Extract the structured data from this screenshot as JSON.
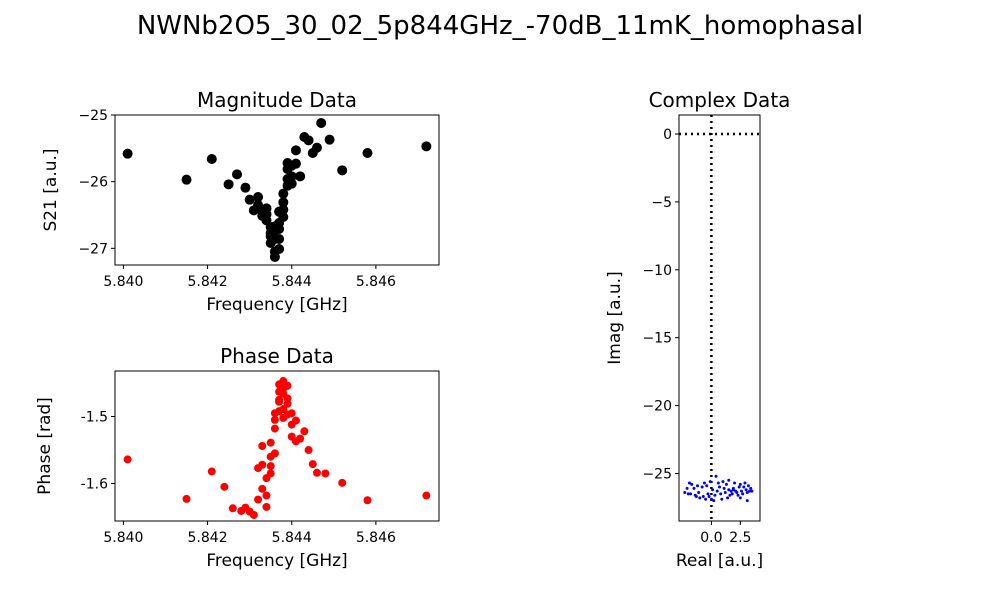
{
  "figure": {
    "title": "NWNb2O5_30_02_5p844GHz_-70dB_11mK_homophasal"
  },
  "chart_data": [
    {
      "id": "magnitude",
      "type": "scatter",
      "title": "Magnitude Data",
      "xlabel": "Frequency [GHz]",
      "ylabel": "S21 [a.u.]",
      "xlim": [
        5.8398,
        5.8475
      ],
      "ylim": [
        -27.25,
        -25.0
      ],
      "xticks": [
        5.84,
        5.842,
        5.844,
        5.846
      ],
      "xticklabels": [
        "5.840",
        "5.842",
        "5.844",
        "5.846"
      ],
      "yticks": [
        -25,
        -26,
        -27
      ],
      "yticklabels": [
        "−25",
        "−26",
        "−27"
      ],
      "color": "#000000",
      "x": [
        5.8401,
        5.8415,
        5.8421,
        5.8425,
        5.8427,
        5.8429,
        5.843,
        5.8431,
        5.8432,
        5.8432,
        5.8433,
        5.8433,
        5.8434,
        5.8434,
        5.8434,
        5.8435,
        5.8435,
        5.8435,
        5.8435,
        5.8436,
        5.8436,
        5.8436,
        5.8436,
        5.8436,
        5.8437,
        5.8437,
        5.8437,
        5.8437,
        5.8437,
        5.8438,
        5.8438,
        5.8438,
        5.8438,
        5.8439,
        5.8439,
        5.8439,
        5.8439,
        5.844,
        5.844,
        5.844,
        5.8441,
        5.8441,
        5.8442,
        5.8443,
        5.8444,
        5.8445,
        5.8446,
        5.8447,
        5.8449,
        5.8452,
        5.8458,
        5.8472
      ],
      "y": [
        -25.58,
        -25.97,
        -25.66,
        -26.04,
        -25.89,
        -26.09,
        -26.27,
        -26.43,
        -26.23,
        -26.35,
        -26.51,
        -26.44,
        -26.4,
        -26.58,
        -26.49,
        -26.68,
        -26.82,
        -26.92,
        -26.77,
        -26.73,
        -27.05,
        -27.13,
        -26.86,
        -26.67,
        -26.45,
        -26.62,
        -27.01,
        -26.86,
        -26.71,
        -26.31,
        -26.42,
        -26.53,
        -26.18,
        -25.96,
        -26.06,
        -25.72,
        -25.81,
        -25.92,
        -26.03,
        -25.76,
        -25.53,
        -25.73,
        -25.92,
        -25.33,
        -25.38,
        -25.57,
        -25.49,
        -25.12,
        -25.37,
        -25.83,
        -25.57,
        -25.47
      ]
    },
    {
      "id": "phase",
      "type": "scatter",
      "title": "Phase Data",
      "xlabel": "Frequency [GHz]",
      "ylabel": "Phase [rad]",
      "xlim": [
        5.8398,
        5.8475
      ],
      "ylim": [
        -1.656,
        -1.432
      ],
      "xticks": [
        5.84,
        5.842,
        5.844,
        5.846
      ],
      "xticklabels": [
        "5.840",
        "5.842",
        "5.844",
        "5.846"
      ],
      "yticks": [
        -1.5,
        -1.6
      ],
      "yticklabels": [
        "-1.5",
        "-1.6"
      ],
      "color": "#ff0000",
      "x": [
        5.8401,
        5.8415,
        5.8421,
        5.8424,
        5.8426,
        5.8428,
        5.8429,
        5.843,
        5.8431,
        5.8432,
        5.8432,
        5.8433,
        5.8433,
        5.8433,
        5.8434,
        5.8434,
        5.8434,
        5.8435,
        5.8435,
        5.8435,
        5.8435,
        5.8436,
        5.8436,
        5.8436,
        5.8436,
        5.8437,
        5.8437,
        5.8437,
        5.8437,
        5.8437,
        5.8438,
        5.8438,
        5.8438,
        5.8438,
        5.8438,
        5.8439,
        5.8439,
        5.8439,
        5.8439,
        5.844,
        5.844,
        5.844,
        5.8441,
        5.8441,
        5.8442,
        5.8443,
        5.8444,
        5.8445,
        5.8446,
        5.8448,
        5.8452,
        5.8458,
        5.8472
      ],
      "y": [
        -1.564,
        -1.623,
        -1.582,
        -1.605,
        -1.637,
        -1.641,
        -1.636,
        -1.642,
        -1.647,
        -1.624,
        -1.577,
        -1.608,
        -1.544,
        -1.572,
        -1.635,
        -1.592,
        -1.618,
        -1.56,
        -1.539,
        -1.585,
        -1.574,
        -1.555,
        -1.518,
        -1.505,
        -1.495,
        -1.475,
        -1.463,
        -1.452,
        -1.478,
        -1.492,
        -1.447,
        -1.466,
        -1.489,
        -1.502,
        -1.458,
        -1.473,
        -1.481,
        -1.454,
        -1.497,
        -1.495,
        -1.512,
        -1.53,
        -1.506,
        -1.537,
        -1.533,
        -1.522,
        -1.55,
        -1.571,
        -1.584,
        -1.585,
        -1.599,
        -1.625,
        -1.618
      ]
    },
    {
      "id": "complex",
      "type": "scatter",
      "title": "Complex Data",
      "xlabel": "Real [a.u.]",
      "ylabel": "Imag [a.u.]",
      "xlim": [
        -2.8,
        4.2
      ],
      "ylim": [
        -28.5,
        1.4
      ],
      "xticks": [
        0.0,
        2.5
      ],
      "xticklabels": [
        "0.0",
        "2.5"
      ],
      "yticks": [
        0,
        -5,
        -10,
        -15,
        -20,
        -25
      ],
      "yticklabels": [
        "0",
        "−5",
        "−10",
        "−15",
        "−20",
        "−25"
      ],
      "color": "#0000ff",
      "x": [
        -2.3,
        -2.1,
        -1.9,
        -1.8,
        -1.7,
        -1.5,
        -1.4,
        -1.2,
        -1.1,
        -1.0,
        -0.8,
        -0.7,
        -0.5,
        -0.4,
        -0.3,
        -0.2,
        -0.1,
        0.0,
        0.1,
        0.2,
        0.3,
        0.5,
        0.6,
        0.7,
        0.8,
        0.9,
        1.0,
        1.1,
        1.2,
        1.3,
        1.4,
        1.5,
        1.6,
        1.7,
        1.8,
        1.9,
        2.0,
        2.1,
        2.2,
        2.3,
        2.4,
        2.5,
        2.6,
        2.7,
        2.8,
        2.9,
        3.0,
        3.1,
        3.2,
        3.3,
        3.4,
        3.5,
        -2.0,
        -1.3,
        -0.6,
        0.4,
        1.5,
        2.5,
        3.1,
        1.9
      ],
      "y": [
        -26.4,
        -26.1,
        -25.7,
        -26.5,
        -25.8,
        -26.1,
        -26.6,
        -25.9,
        -26.4,
        -26.8,
        -26.0,
        -26.7,
        -26.9,
        -25.9,
        -26.5,
        -26.7,
        -25.6,
        -26.9,
        -26.2,
        -27.0,
        -26.6,
        -26.3,
        -25.7,
        -26.0,
        -26.5,
        -26.9,
        -25.6,
        -26.1,
        -26.4,
        -25.8,
        -26.8,
        -26.2,
        -26.6,
        -26.3,
        -26.5,
        -26.1,
        -25.7,
        -26.3,
        -26.4,
        -26.6,
        -26.0,
        -25.8,
        -26.3,
        -26.5,
        -26.0,
        -25.7,
        -26.2,
        -26.4,
        -25.9,
        -26.3,
        -26.1,
        -26.3,
        -26.5,
        -26.7,
        -25.7,
        -25.2,
        -25.5,
        -26.8,
        -27.0,
        -26.2
      ]
    }
  ]
}
